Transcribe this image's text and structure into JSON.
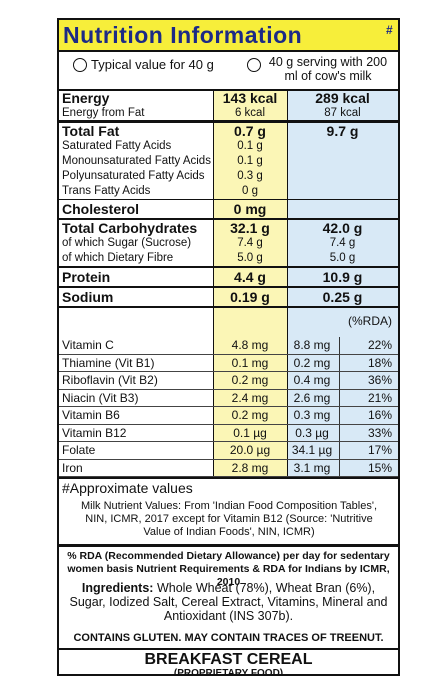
{
  "title": "Nutrition Information",
  "title_mark": "#",
  "legend": {
    "per_40g": "Typical value for 40 g",
    "with_milk": "40 g serving with 200 ml of cow's milk"
  },
  "sections": [
    {
      "main": {
        "name": "Energy",
        "per_40g": "143 kcal",
        "with_milk": "289 kcal"
      },
      "subs": [
        {
          "name": "Energy from Fat",
          "per_40g": "6 kcal",
          "with_milk": "87 kcal"
        }
      ]
    },
    {
      "main": {
        "name": "Total Fat",
        "per_40g": "0.7 g",
        "with_milk": "9.7 g"
      },
      "subs": [
        {
          "name": "Saturated Fatty Acids",
          "per_40g": "0.1 g"
        },
        {
          "name": "Monounsaturated Fatty Acids",
          "per_40g": "0.1 g"
        },
        {
          "name": "Polyunsaturated Fatty Acids",
          "per_40g": "0.3 g"
        },
        {
          "name": "Trans Fatty Acids",
          "per_40g": "0 g"
        }
      ]
    },
    {
      "main": {
        "name": "Cholesterol",
        "per_40g": "0 mg"
      },
      "subs": []
    },
    {
      "main": {
        "name": "Total Carbohydrates",
        "per_40g": "32.1 g",
        "with_milk": "42.0 g"
      },
      "subs": [
        {
          "name": "of which Sugar (Sucrose)",
          "per_40g": "7.4 g",
          "with_milk": "7.4 g"
        },
        {
          "name": "of which Dietary Fibre",
          "per_40g": "5.0 g",
          "with_milk": "5.0 g"
        }
      ]
    },
    {
      "main": {
        "name": "Protein",
        "per_40g": "4.4 g",
        "with_milk": "10.9 g"
      },
      "subs": []
    },
    {
      "main": {
        "name": "Sodium",
        "per_40g": "0.19 g",
        "with_milk": "0.25 g"
      },
      "subs": []
    }
  ],
  "rda_header": "(%RDA)",
  "vitamins": [
    {
      "name": "Vitamin C",
      "per_40g": "4.8 mg",
      "with_milk": "8.8 mg",
      "rda": "22%"
    },
    {
      "name": "Thiamine (Vit B1)",
      "per_40g": "0.1 mg",
      "with_milk": "0.2 mg",
      "rda": "18%"
    },
    {
      "name": "Riboflavin (Vit B2)",
      "per_40g": "0.2 mg",
      "with_milk": "0.4 mg",
      "rda": "36%"
    },
    {
      "name": "Niacin (Vit B3)",
      "per_40g": "2.4 mg",
      "with_milk": "2.6 mg",
      "rda": "21%"
    },
    {
      "name": "Vitamin B6",
      "per_40g": "0.2 mg",
      "with_milk": "0.3 mg",
      "rda": "16%"
    },
    {
      "name": "Vitamin B12",
      "per_40g": "0.1 µg",
      "with_milk": "0.3 µg",
      "rda": "33%"
    },
    {
      "name": "Folate",
      "per_40g": "20.0 µg",
      "with_milk": "34.1 µg",
      "rda": "17%"
    },
    {
      "name": "Iron",
      "per_40g": "2.8 mg",
      "with_milk": "3.1 mg",
      "rda": "15%"
    }
  ],
  "approx_note": "#Approximate values",
  "milk_note": "Milk Nutrient Values: From 'Indian Food Composition Tables', NIN, ICMR, 2017 except for Vitamin B12 (Source: 'Nutritive Value of Indian Foods', NIN, ICMR)",
  "rda_note": "% RDA (Recommended Dietary Allowance) per day for sedentary women basis Nutrient Requirements & RDA for Indians by ICMR, 2010",
  "ingredients": {
    "label": "Ingredients:",
    "text": "Whole Wheat (78%), Wheat Bran (6%), Sugar, Iodized Salt, Cereal Extract, Vitamins, Mineral and Antioxidant (INS 307b)."
  },
  "allergen": "CONTAINS GLUTEN. MAY CONTAIN TRACES OF TREENUT.",
  "product": "BREAKFAST CEREAL",
  "product_sub": "(PROPRIETARY FOOD)"
}
